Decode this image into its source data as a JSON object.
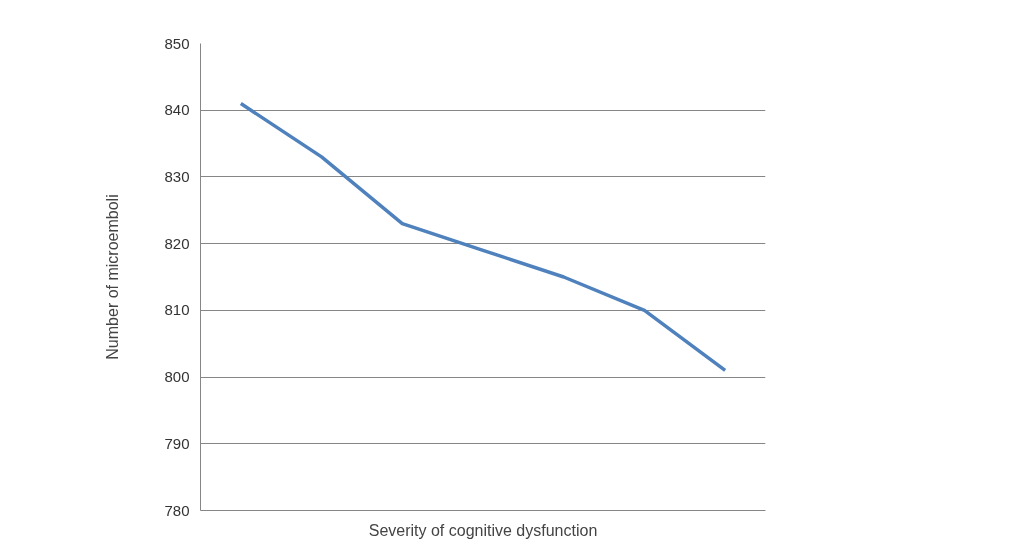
{
  "chart_data": {
    "type": "line",
    "xlabel": "Severity of cognitive dysfunction",
    "ylabel": "Number of microemboli",
    "categories": [
      null,
      null,
      null,
      null,
      null,
      null,
      null
    ],
    "series": [
      {
        "color": "#4f81bd",
        "values": [
          841,
          833,
          823,
          819,
          815,
          810,
          801
        ]
      }
    ],
    "ylim": [
      780,
      850
    ],
    "yticks": [
      780,
      790,
      800,
      810,
      820,
      830,
      840,
      850
    ],
    "grid": "y",
    "marker": "none",
    "line_style": "solid"
  }
}
